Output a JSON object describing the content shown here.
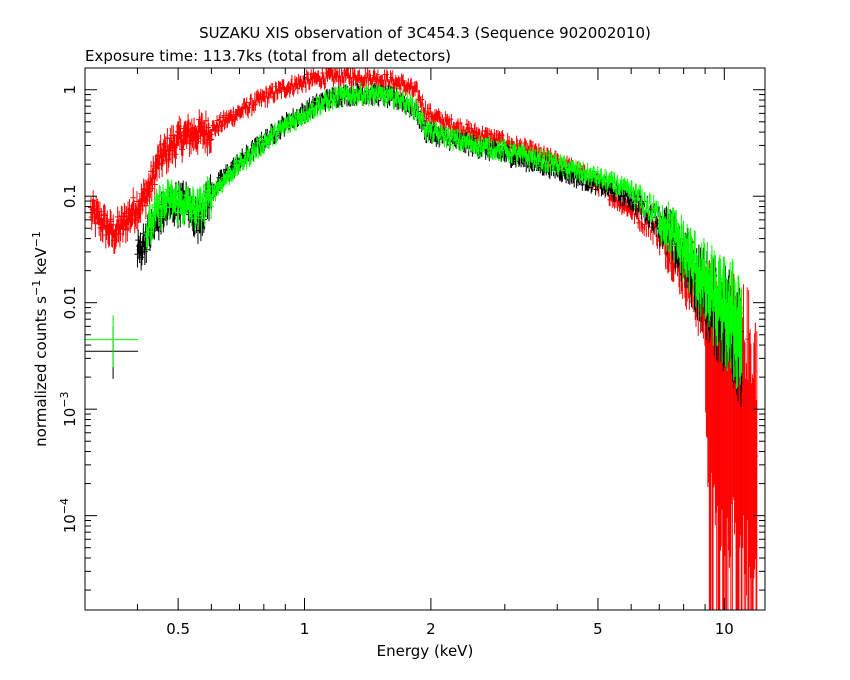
{
  "chart_data": {
    "type": "scatter",
    "title": "SUZAKU XIS observation of 3C454.3 (Sequence 902002010)",
    "subtitle": "Exposure time: 113.7ks (total from all detectors)",
    "xlabel": "Energy (keV)",
    "ylabel": {
      "prefix": "normalized counts s",
      "exp1": "−1",
      "mid": " keV",
      "exp2": "−1"
    },
    "x_scale": "log",
    "y_scale": "log",
    "xlim": [
      0.3,
      12.5
    ],
    "ylim": [
      1.3e-05,
      1.6
    ],
    "grid": false,
    "x_ticks": [
      {
        "value": 0.5,
        "label": "0.5"
      },
      {
        "value": 1,
        "label": "1"
      },
      {
        "value": 2,
        "label": "2"
      },
      {
        "value": 5,
        "label": "5"
      },
      {
        "value": 10,
        "label": "10"
      }
    ],
    "y_ticks": [
      {
        "value": 1,
        "label": "1"
      },
      {
        "value": 0.1,
        "label": "0.1"
      },
      {
        "value": 0.01,
        "label": "0.01"
      },
      {
        "value": 0.001,
        "base": "10",
        "exp": "−3"
      },
      {
        "value": 0.0001,
        "base": "10",
        "exp": "−4"
      }
    ],
    "series": [
      {
        "color": "#ff0000",
        "points": [
          [
            0.31,
            0.072
          ],
          [
            0.33,
            0.058
          ],
          [
            0.35,
            0.045
          ],
          [
            0.37,
            0.055
          ],
          [
            0.39,
            0.075
          ],
          [
            0.41,
            0.09
          ],
          [
            0.43,
            0.13
          ],
          [
            0.45,
            0.22
          ],
          [
            0.48,
            0.3
          ],
          [
            0.51,
            0.36
          ],
          [
            0.55,
            0.4
          ],
          [
            0.6,
            0.42
          ],
          [
            0.65,
            0.52
          ],
          [
            0.7,
            0.62
          ],
          [
            0.8,
            0.85
          ],
          [
            0.9,
            1.05
          ],
          [
            1.0,
            1.2
          ],
          [
            1.1,
            1.3
          ],
          [
            1.2,
            1.35
          ],
          [
            1.35,
            1.32
          ],
          [
            1.5,
            1.28
          ],
          [
            1.7,
            1.15
          ],
          [
            1.85,
            0.95
          ],
          [
            1.95,
            0.62
          ],
          [
            2.05,
            0.55
          ],
          [
            2.2,
            0.48
          ],
          [
            2.5,
            0.4
          ],
          [
            3.0,
            0.32
          ],
          [
            3.5,
            0.26
          ],
          [
            4.0,
            0.21
          ],
          [
            4.5,
            0.17
          ],
          [
            5.0,
            0.13
          ],
          [
            5.5,
            0.095
          ],
          [
            6.0,
            0.075
          ],
          [
            6.5,
            0.058
          ],
          [
            7.0,
            0.045
          ],
          [
            7.5,
            0.032
          ],
          [
            8.0,
            0.022
          ],
          [
            8.5,
            0.015
          ],
          [
            9.0,
            0.01
          ],
          [
            9.5,
            0.006
          ],
          [
            10.0,
            0.004
          ],
          [
            10.5,
            0.003
          ],
          [
            11.0,
            0.002
          ],
          [
            11.5,
            0.0015
          ],
          [
            12.0,
            0.001
          ]
        ]
      },
      {
        "color": "#000000",
        "points": [
          [
            0.35,
            0.0035
          ],
          [
            0.4,
            0.03
          ],
          [
            0.45,
            0.065
          ],
          [
            0.48,
            0.085
          ],
          [
            0.52,
            0.09
          ],
          [
            0.56,
            0.06
          ],
          [
            0.6,
            0.11
          ],
          [
            0.65,
            0.16
          ],
          [
            0.7,
            0.21
          ],
          [
            0.8,
            0.33
          ],
          [
            0.9,
            0.48
          ],
          [
            1.0,
            0.62
          ],
          [
            1.1,
            0.78
          ],
          [
            1.2,
            0.88
          ],
          [
            1.35,
            0.92
          ],
          [
            1.5,
            0.9
          ],
          [
            1.7,
            0.8
          ],
          [
            1.85,
            0.62
          ],
          [
            1.95,
            0.4
          ],
          [
            2.1,
            0.37
          ],
          [
            2.3,
            0.33
          ],
          [
            2.6,
            0.29
          ],
          [
            3.0,
            0.25
          ],
          [
            3.5,
            0.21
          ],
          [
            4.0,
            0.18
          ],
          [
            4.5,
            0.15
          ],
          [
            5.0,
            0.13
          ],
          [
            5.5,
            0.11
          ],
          [
            6.0,
            0.095
          ],
          [
            6.5,
            0.075
          ],
          [
            7.0,
            0.058
          ],
          [
            7.5,
            0.042
          ],
          [
            8.0,
            0.03
          ],
          [
            8.5,
            0.02
          ],
          [
            9.0,
            0.014
          ],
          [
            9.5,
            0.011
          ],
          [
            10.0,
            0.009
          ],
          [
            11.0,
            0.007
          ]
        ]
      },
      {
        "color": "#00ff00",
        "points": [
          [
            0.35,
            0.0045
          ],
          [
            0.42,
            0.045
          ],
          [
            0.45,
            0.08
          ],
          [
            0.48,
            0.095
          ],
          [
            0.52,
            0.085
          ],
          [
            0.56,
            0.075
          ],
          [
            0.6,
            0.105
          ],
          [
            0.65,
            0.15
          ],
          [
            0.7,
            0.2
          ],
          [
            0.8,
            0.32
          ],
          [
            0.9,
            0.46
          ],
          [
            1.0,
            0.6
          ],
          [
            1.1,
            0.75
          ],
          [
            1.2,
            0.86
          ],
          [
            1.35,
            0.92
          ],
          [
            1.5,
            0.9
          ],
          [
            1.7,
            0.82
          ],
          [
            1.85,
            0.65
          ],
          [
            1.95,
            0.42
          ],
          [
            2.1,
            0.38
          ],
          [
            2.3,
            0.34
          ],
          [
            2.6,
            0.3
          ],
          [
            3.0,
            0.27
          ],
          [
            3.5,
            0.23
          ],
          [
            4.0,
            0.2
          ],
          [
            4.5,
            0.17
          ],
          [
            5.0,
            0.15
          ],
          [
            5.5,
            0.13
          ],
          [
            6.0,
            0.11
          ],
          [
            6.5,
            0.085
          ],
          [
            7.0,
            0.065
          ],
          [
            7.5,
            0.048
          ],
          [
            8.0,
            0.034
          ],
          [
            8.5,
            0.024
          ],
          [
            9.0,
            0.017
          ],
          [
            9.5,
            0.013
          ],
          [
            10.0,
            0.01
          ],
          [
            11.0,
            0.008
          ]
        ]
      }
    ]
  }
}
